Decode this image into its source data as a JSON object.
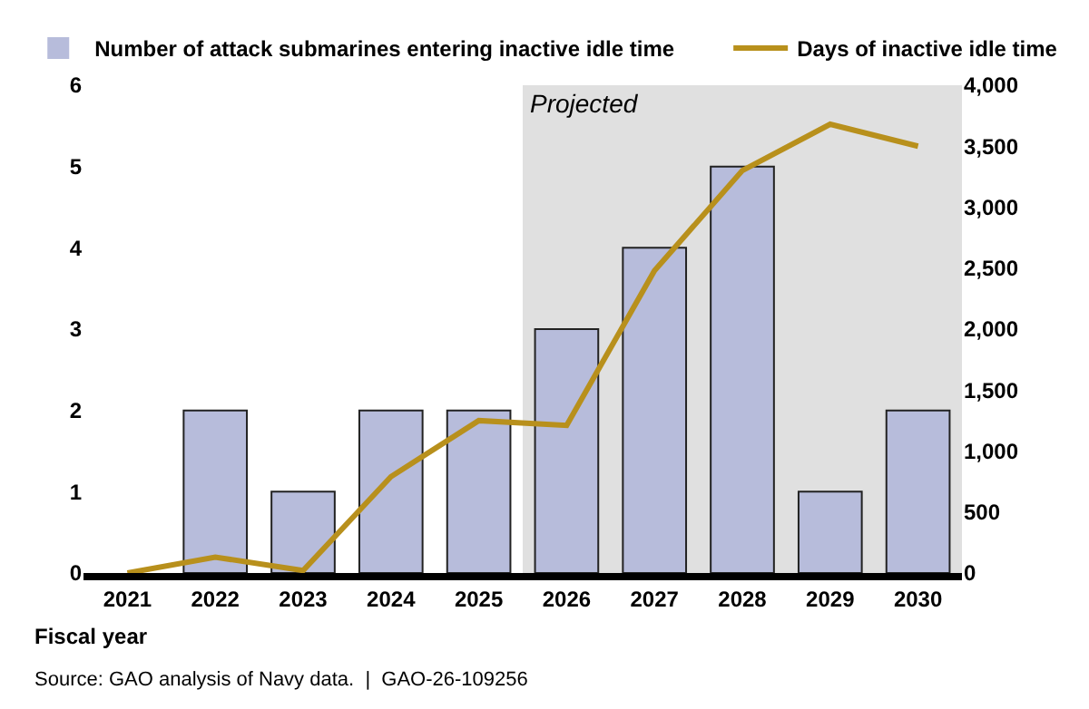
{
  "chart_data": {
    "type": "bar",
    "categories": [
      "2021",
      "2022",
      "2023",
      "2024",
      "2025",
      "2026",
      "2027",
      "2028",
      "2029",
      "2030"
    ],
    "xlabel": "Fiscal year",
    "series": [
      {
        "name": "Number of attack submarines entering inactive idle time",
        "color": "#b7bcdb",
        "values": [
          0,
          2,
          1,
          2,
          2,
          3,
          4,
          5,
          1,
          2
        ]
      },
      {
        "name": "Days of inactive idle time",
        "type": "line",
        "axis": "y2",
        "color": "#b8901c",
        "values": [
          0,
          130,
          20,
          790,
          1250,
          1210,
          2480,
          3300,
          3680,
          3500
        ]
      }
    ],
    "ylim": [
      0,
      6
    ],
    "yticks": [
      0,
      1,
      2,
      3,
      4,
      5,
      6
    ],
    "y2lim": [
      0,
      4000
    ],
    "y2ticks": [
      {
        "value": 0,
        "label": "0"
      },
      {
        "value": 500,
        "label": "500"
      },
      {
        "value": 1000,
        "label": "1,000"
      },
      {
        "value": 1500,
        "label": "1,500"
      },
      {
        "value": 2000,
        "label": "2,000"
      },
      {
        "value": 2500,
        "label": "2,500"
      },
      {
        "value": 3000,
        "label": "3,000"
      },
      {
        "value": 3500,
        "label": "3,500"
      },
      {
        "value": 4000,
        "label": "4,000"
      }
    ],
    "bands": [
      {
        "axis": "x",
        "from": "2026",
        "to": "2030",
        "label": "Projected",
        "color": "#e0e0e0"
      }
    ],
    "legend": "top",
    "grid": false,
    "annotations": [
      "Source: GAO analysis of Navy data.  |  GAO-26-109256"
    ]
  }
}
